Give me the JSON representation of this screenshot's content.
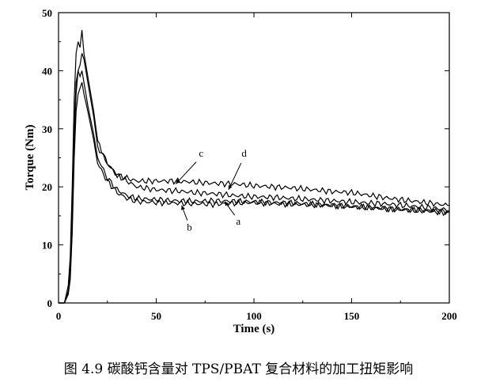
{
  "chart_data": {
    "type": "line",
    "title": "",
    "xlabel": "Time (s)",
    "ylabel": "Torque (Nm)",
    "xlim": [
      0,
      200
    ],
    "ylim": [
      0,
      50
    ],
    "xticks": [
      0,
      50,
      100,
      150,
      200
    ],
    "yticks": [
      0,
      10,
      20,
      30,
      40,
      50
    ],
    "grid": false,
    "legend": "none",
    "series": [
      {
        "name": "a",
        "x": [
          0,
          3,
          5,
          6,
          7,
          8,
          9,
          10,
          11,
          12,
          13,
          15,
          18,
          20,
          25,
          30,
          40,
          50,
          60,
          70,
          80,
          90,
          100,
          110,
          120,
          130,
          140,
          150,
          160,
          170,
          180,
          190,
          200
        ],
        "y": [
          0,
          0,
          2,
          5,
          15,
          28,
          36,
          40,
          41,
          43,
          42,
          38,
          32,
          27,
          24,
          22,
          20,
          19.5,
          19.3,
          19,
          18.8,
          18.5,
          18.3,
          18.2,
          18,
          17.8,
          17.6,
          17.4,
          17.2,
          17,
          16.7,
          16.4,
          16
        ]
      },
      {
        "name": "b",
        "x": [
          0,
          3,
          5,
          6,
          7,
          8,
          9,
          10,
          11,
          12,
          13,
          15,
          18,
          20,
          25,
          30,
          35,
          40,
          50,
          60,
          70,
          80,
          90,
          100,
          110,
          120,
          130,
          140,
          150,
          160,
          170,
          180,
          190,
          200
        ],
        "y": [
          0,
          0,
          1.5,
          4,
          12,
          25,
          33,
          36,
          37,
          38,
          36,
          33,
          28,
          24,
          21,
          19,
          18,
          17.5,
          17.3,
          17.2,
          17.1,
          17,
          17.2,
          17.3,
          17.1,
          17,
          16.9,
          16.8,
          16.6,
          16.4,
          16.2,
          16,
          15.8,
          15.5
        ]
      },
      {
        "name": "c",
        "x": [
          0,
          3,
          5,
          6,
          7,
          8,
          9,
          10,
          11,
          12,
          13,
          15,
          18,
          20,
          25,
          30,
          40,
          50,
          60,
          70,
          80,
          90,
          100,
          110,
          120,
          130,
          140,
          150,
          160,
          170,
          180,
          190,
          200
        ],
        "y": [
          0,
          0,
          3,
          8,
          20,
          35,
          43,
          45,
          44,
          47,
          43,
          39,
          33,
          28,
          24,
          22,
          21,
          21,
          21,
          20.8,
          20.6,
          20.5,
          20.2,
          20,
          19.8,
          19.5,
          19.2,
          19,
          18.5,
          18,
          17.6,
          17.2,
          16.8
        ]
      },
      {
        "name": "d",
        "x": [
          0,
          3,
          5,
          6,
          7,
          8,
          9,
          10,
          11,
          12,
          13,
          15,
          18,
          20,
          25,
          30,
          35,
          40,
          50,
          60,
          70,
          80,
          90,
          100,
          110,
          120,
          130,
          140,
          150,
          160,
          170,
          180,
          190,
          200
        ],
        "y": [
          0,
          0,
          2,
          6,
          17,
          30,
          38,
          40,
          39,
          40,
          38,
          34,
          29,
          25,
          21.5,
          19.5,
          18.5,
          18,
          17.8,
          17.6,
          17.5,
          17.6,
          17.5,
          17.4,
          17.3,
          17.2,
          17,
          16.8,
          16.6,
          16.4,
          16.2,
          16,
          15.9,
          15.7
        ]
      }
    ],
    "annotations": [
      {
        "label": "a",
        "target_x": 85,
        "target_y": 17.5,
        "text_x": 92,
        "text_y": 13.5
      },
      {
        "label": "b",
        "target_x": 63,
        "target_y": 16.8,
        "text_x": 67,
        "text_y": 12.5
      },
      {
        "label": "c",
        "target_x": 60,
        "target_y": 20.5,
        "text_x": 73,
        "text_y": 25.2
      },
      {
        "label": "d",
        "target_x": 87,
        "target_y": 19.5,
        "text_x": 95,
        "text_y": 25.2
      }
    ]
  },
  "caption": "图 4.9 碳酸钙含量对 TPS/PBAT 复合材料的加工扭矩影响"
}
